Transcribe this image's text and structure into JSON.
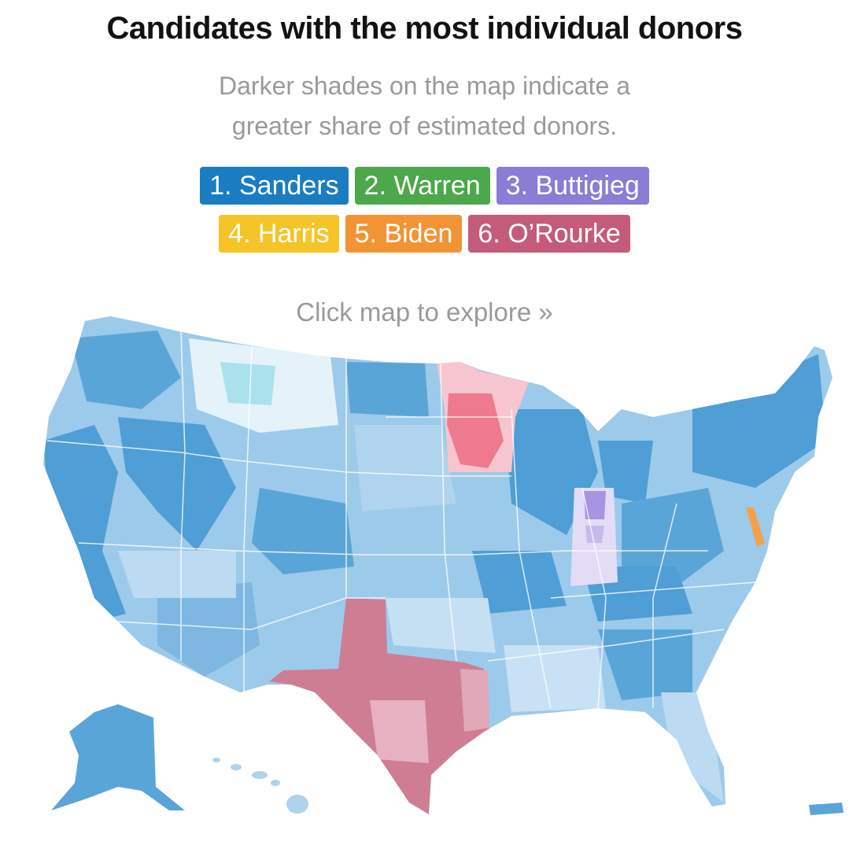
{
  "title": "Candidates with the most individual donors",
  "subtitle": {
    "line1": "Darker shades on the map indicate a",
    "line2": "greater share of estimated donors."
  },
  "legend": [
    {
      "label": "1. Sanders",
      "color": "#1a7dc1"
    },
    {
      "label": "2. Warren",
      "color": "#4ca84a"
    },
    {
      "label": "3. Buttigieg",
      "color": "#8b7cd6"
    },
    {
      "label": "4. Harris",
      "color": "#f5c427"
    },
    {
      "label": "5. Biden",
      "color": "#f29433"
    },
    {
      "label": "6. O’Rourke",
      "color": "#c45c79"
    }
  ],
  "explore_link": "Click map to explore »",
  "map": {
    "colors": {
      "sanders_dark": "#4f9ed5",
      "sanders_mid": "#8cc0e6",
      "sanders_light": "#c8e1f4",
      "sanders_pale": "#e4f1fa",
      "cyan_pale": "#c5ecf2",
      "cyan": "#9fe0ea",
      "orourke": "#cf7d92",
      "orourke_light": "#e8b8c5",
      "minnesota_pink": "#f6b8c3",
      "minnesota_red": "#ef6e84",
      "buttigieg": "#a894e0",
      "biden": "#f2a14a"
    },
    "regions": {
      "texas": "Texas",
      "minnesota": "Minnesota",
      "indiana": "Indiana",
      "alaska": "Alaska",
      "hawaii": "Hawaii",
      "puerto_rico": "Puerto Rico"
    }
  }
}
